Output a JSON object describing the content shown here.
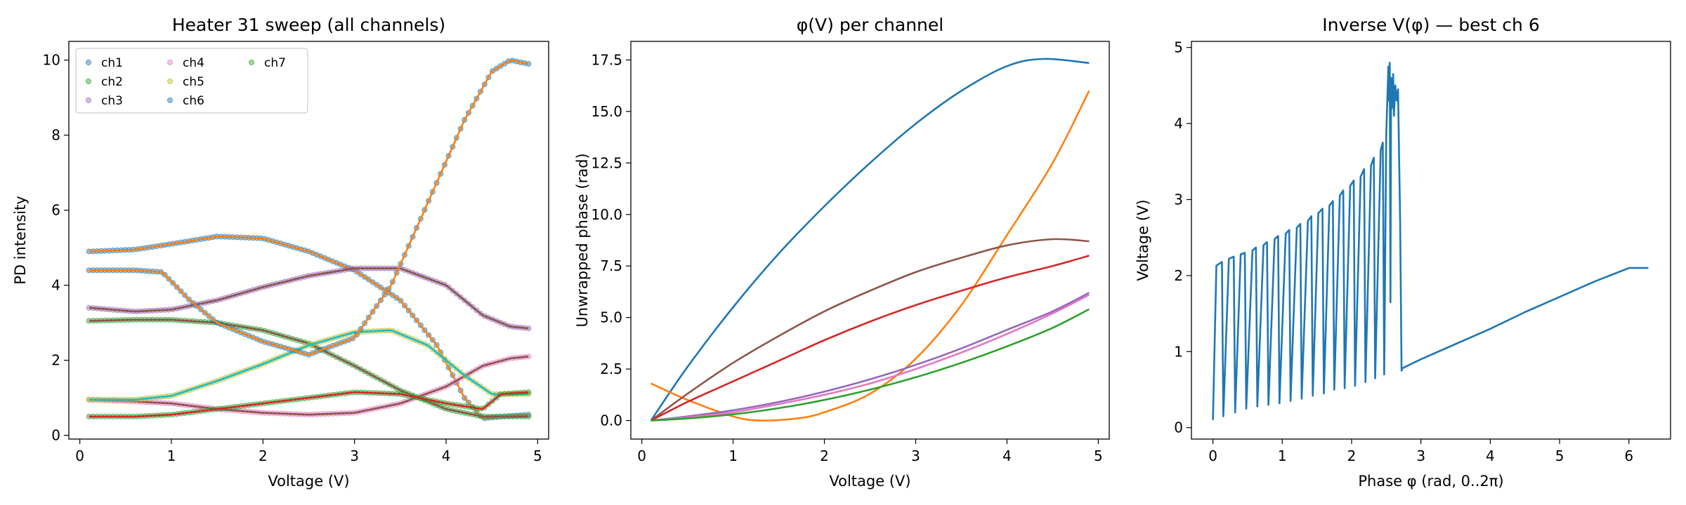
{
  "chart_data": [
    {
      "type": "scatter",
      "title": "Heater 31 sweep (all channels)",
      "xlabel": "Voltage (V)",
      "ylabel": "PD intensity",
      "xlim": [
        -0.12,
        5.12
      ],
      "ylim": [
        -0.1,
        10.5
      ],
      "xticks": [
        0,
        1,
        2,
        3,
        4,
        5
      ],
      "yticks": [
        0,
        2,
        4,
        6,
        8,
        10
      ],
      "legend_position": "top-left",
      "legend_columns": 3,
      "series": [
        {
          "name": "ch1",
          "color": "#1f77b4",
          "fit_color": "#ff7f0e",
          "points": [
            [
              0.1,
              4.9
            ],
            [
              0.6,
              4.95
            ],
            [
              1.0,
              5.1
            ],
            [
              1.5,
              5.3
            ],
            [
              2.0,
              5.25
            ],
            [
              2.5,
              4.9
            ],
            [
              3.0,
              4.4
            ],
            [
              3.5,
              3.6
            ],
            [
              3.9,
              2.4
            ],
            [
              4.2,
              1.0
            ],
            [
              4.4,
              0.45
            ],
            [
              4.6,
              0.5
            ],
            [
              4.9,
              0.55
            ]
          ]
        },
        {
          "name": "ch2",
          "color": "#2ca02c",
          "fit_color": "#8c564b",
          "points": [
            [
              0.1,
              3.05
            ],
            [
              0.6,
              3.08
            ],
            [
              1.0,
              3.08
            ],
            [
              1.5,
              3.0
            ],
            [
              2.0,
              2.8
            ],
            [
              2.5,
              2.45
            ],
            [
              3.0,
              1.85
            ],
            [
              3.5,
              1.2
            ],
            [
              4.0,
              0.7
            ],
            [
              4.4,
              0.5
            ],
            [
              4.9,
              0.5
            ]
          ]
        },
        {
          "name": "ch3",
          "color": "#9467bd",
          "fit_color": "#8c564b",
          "points": [
            [
              0.1,
              3.4
            ],
            [
              0.6,
              3.3
            ],
            [
              1.0,
              3.35
            ],
            [
              1.5,
              3.6
            ],
            [
              2.0,
              3.95
            ],
            [
              2.5,
              4.25
            ],
            [
              3.0,
              4.45
            ],
            [
              3.5,
              4.45
            ],
            [
              4.0,
              4.0
            ],
            [
              4.4,
              3.2
            ],
            [
              4.7,
              2.9
            ],
            [
              4.9,
              2.85
            ]
          ]
        },
        {
          "name": "ch4",
          "color": "#e377c2",
          "fit_color": "#8c564b",
          "points": [
            [
              0.1,
              0.95
            ],
            [
              0.6,
              0.9
            ],
            [
              1.0,
              0.85
            ],
            [
              1.5,
              0.7
            ],
            [
              2.0,
              0.6
            ],
            [
              2.5,
              0.55
            ],
            [
              3.0,
              0.6
            ],
            [
              3.5,
              0.85
            ],
            [
              4.0,
              1.3
            ],
            [
              4.4,
              1.85
            ],
            [
              4.7,
              2.05
            ],
            [
              4.9,
              2.1
            ]
          ]
        },
        {
          "name": "ch5",
          "color": "#bcbd22",
          "fit_color": "#17becf",
          "points": [
            [
              0.1,
              0.95
            ],
            [
              0.6,
              0.95
            ],
            [
              1.0,
              1.05
            ],
            [
              1.5,
              1.45
            ],
            [
              2.0,
              1.9
            ],
            [
              2.5,
              2.4
            ],
            [
              3.0,
              2.75
            ],
            [
              3.4,
              2.8
            ],
            [
              3.8,
              2.4
            ],
            [
              4.2,
              1.6
            ],
            [
              4.5,
              1.1
            ],
            [
              4.9,
              1.1
            ]
          ]
        },
        {
          "name": "ch6",
          "color": "#1f77b4",
          "fit_color": "#ff7f0e",
          "points": [
            [
              0.1,
              4.4
            ],
            [
              0.6,
              4.4
            ],
            [
              0.9,
              4.35
            ],
            [
              1.2,
              3.6
            ],
            [
              1.5,
              3.0
            ],
            [
              2.0,
              2.5
            ],
            [
              2.5,
              2.15
            ],
            [
              3.0,
              2.6
            ],
            [
              3.4,
              4.0
            ],
            [
              3.8,
              6.2
            ],
            [
              4.2,
              8.4
            ],
            [
              4.5,
              9.7
            ],
            [
              4.7,
              10.0
            ],
            [
              4.9,
              9.9
            ]
          ]
        },
        {
          "name": "ch7",
          "color": "#2ca02c",
          "fit_color": "#d62728",
          "points": [
            [
              0.1,
              0.5
            ],
            [
              0.6,
              0.5
            ],
            [
              1.0,
              0.55
            ],
            [
              1.5,
              0.7
            ],
            [
              2.0,
              0.85
            ],
            [
              2.5,
              1.0
            ],
            [
              3.0,
              1.15
            ],
            [
              3.5,
              1.1
            ],
            [
              4.0,
              0.85
            ],
            [
              4.4,
              0.7
            ],
            [
              4.6,
              1.1
            ],
            [
              4.9,
              1.15
            ]
          ]
        }
      ]
    },
    {
      "type": "line",
      "title": "φ(V) per channel",
      "xlabel": "Voltage (V)",
      "ylabel": "Unwrapped phase (rad)",
      "xlim": [
        -0.12,
        5.12
      ],
      "ylim": [
        -0.9,
        18.4
      ],
      "xticks": [
        0,
        1,
        2,
        3,
        4,
        5
      ],
      "yticks": [
        0.0,
        2.5,
        5.0,
        7.5,
        10.0,
        12.5,
        15.0,
        17.5
      ],
      "series": [
        {
          "color": "#1f77b4",
          "points": [
            [
              0.1,
              0
            ],
            [
              0.5,
              2.6
            ],
            [
              1.0,
              5.5
            ],
            [
              1.5,
              8.1
            ],
            [
              2.0,
              10.4
            ],
            [
              2.5,
              12.5
            ],
            [
              3.0,
              14.4
            ],
            [
              3.5,
              16.0
            ],
            [
              4.0,
              17.2
            ],
            [
              4.4,
              17.55
            ],
            [
              4.9,
              17.35
            ]
          ]
        },
        {
          "color": "#ff7f0e",
          "points": [
            [
              0.1,
              1.8
            ],
            [
              0.5,
              1.0
            ],
            [
              1.0,
              0.2
            ],
            [
              1.3,
              0.0
            ],
            [
              1.7,
              0.1
            ],
            [
              2.0,
              0.4
            ],
            [
              2.5,
              1.3
            ],
            [
              3.0,
              3.0
            ],
            [
              3.5,
              5.6
            ],
            [
              4.0,
              9.0
            ],
            [
              4.5,
              12.5
            ],
            [
              4.9,
              16.0
            ]
          ]
        },
        {
          "color": "#8c564b",
          "points": [
            [
              0.1,
              0
            ],
            [
              0.5,
              1.3
            ],
            [
              1.0,
              2.8
            ],
            [
              1.5,
              4.1
            ],
            [
              2.0,
              5.3
            ],
            [
              2.5,
              6.3
            ],
            [
              3.0,
              7.2
            ],
            [
              3.5,
              7.9
            ],
            [
              4.0,
              8.5
            ],
            [
              4.5,
              8.8
            ],
            [
              4.9,
              8.7
            ]
          ]
        },
        {
          "color": "#d62728",
          "points": [
            [
              0.1,
              0
            ],
            [
              0.5,
              0.9
            ],
            [
              1.0,
              1.9
            ],
            [
              1.5,
              2.9
            ],
            [
              2.0,
              3.9
            ],
            [
              2.5,
              4.8
            ],
            [
              3.0,
              5.6
            ],
            [
              3.5,
              6.3
            ],
            [
              4.0,
              6.95
            ],
            [
              4.5,
              7.5
            ],
            [
              4.9,
              8.0
            ]
          ]
        },
        {
          "color": "#9467bd",
          "points": [
            [
              0.1,
              0
            ],
            [
              0.5,
              0.2
            ],
            [
              1.0,
              0.5
            ],
            [
              1.5,
              0.9
            ],
            [
              2.0,
              1.4
            ],
            [
              2.5,
              2.0
            ],
            [
              3.0,
              2.7
            ],
            [
              3.5,
              3.5
            ],
            [
              4.0,
              4.4
            ],
            [
              4.5,
              5.3
            ],
            [
              4.9,
              6.2
            ]
          ]
        },
        {
          "color": "#e377c2",
          "points": [
            [
              0.1,
              0
            ],
            [
              0.5,
              0.15
            ],
            [
              1.0,
              0.4
            ],
            [
              1.5,
              0.8
            ],
            [
              2.0,
              1.25
            ],
            [
              2.5,
              1.8
            ],
            [
              3.0,
              2.5
            ],
            [
              3.5,
              3.3
            ],
            [
              4.0,
              4.2
            ],
            [
              4.5,
              5.2
            ],
            [
              4.9,
              6.1
            ]
          ]
        },
        {
          "color": "#2ca02c",
          "points": [
            [
              0.1,
              0
            ],
            [
              0.5,
              0.1
            ],
            [
              1.0,
              0.3
            ],
            [
              1.5,
              0.6
            ],
            [
              2.0,
              1.0
            ],
            [
              2.5,
              1.5
            ],
            [
              3.0,
              2.1
            ],
            [
              3.5,
              2.8
            ],
            [
              4.0,
              3.6
            ],
            [
              4.5,
              4.5
            ],
            [
              4.9,
              5.4
            ]
          ]
        }
      ]
    },
    {
      "type": "line",
      "title": "Inverse V(φ) — best ch 6",
      "xlabel": "Phase φ (rad, 0..2π)",
      "ylabel": "Voltage (V)",
      "xlim": [
        -0.31,
        6.6
      ],
      "ylim": [
        -0.15,
        5.08
      ],
      "xticks": [
        0,
        1,
        2,
        3,
        4,
        5,
        6
      ],
      "yticks": [
        0,
        1,
        2,
        3,
        4,
        5
      ],
      "series": [
        {
          "color": "#1f77b4",
          "points": [
            [
              0,
              0.1
            ],
            [
              0.05,
              2.13
            ],
            [
              0.13,
              2.18
            ],
            [
              0.15,
              0.15
            ],
            [
              0.23,
              2.22
            ],
            [
              0.3,
              2.25
            ],
            [
              0.32,
              0.2
            ],
            [
              0.4,
              2.28
            ],
            [
              0.46,
              2.3
            ],
            [
              0.48,
              0.25
            ],
            [
              0.57,
              2.33
            ],
            [
              0.62,
              2.37
            ],
            [
              0.64,
              0.28
            ],
            [
              0.73,
              2.4
            ],
            [
              0.78,
              2.44
            ],
            [
              0.8,
              0.3
            ],
            [
              0.89,
              2.48
            ],
            [
              0.94,
              2.52
            ],
            [
              0.96,
              0.32
            ],
            [
              1.05,
              2.55
            ],
            [
              1.1,
              2.6
            ],
            [
              1.12,
              0.35
            ],
            [
              1.21,
              2.63
            ],
            [
              1.26,
              2.68
            ],
            [
              1.28,
              0.38
            ],
            [
              1.37,
              2.72
            ],
            [
              1.42,
              2.78
            ],
            [
              1.44,
              0.42
            ],
            [
              1.52,
              2.82
            ],
            [
              1.58,
              2.88
            ],
            [
              1.6,
              0.45
            ],
            [
              1.68,
              2.92
            ],
            [
              1.73,
              2.98
            ],
            [
              1.75,
              0.5
            ],
            [
              1.83,
              3.05
            ],
            [
              1.88,
              3.12
            ],
            [
              1.9,
              0.52
            ],
            [
              1.98,
              3.18
            ],
            [
              2.03,
              3.25
            ],
            [
              2.05,
              0.55
            ],
            [
              2.13,
              3.3
            ],
            [
              2.18,
              3.4
            ],
            [
              2.2,
              0.6
            ],
            [
              2.28,
              3.45
            ],
            [
              2.32,
              3.55
            ],
            [
              2.34,
              0.65
            ],
            [
              2.42,
              3.65
            ],
            [
              2.45,
              3.75
            ],
            [
              2.47,
              0.7
            ],
            [
              2.5,
              3.85
            ],
            [
              2.53,
              4.75
            ],
            [
              2.54,
              4.3
            ],
            [
              2.55,
              4.8
            ],
            [
              2.56,
              1.65
            ],
            [
              2.57,
              4.6
            ],
            [
              2.58,
              4.2
            ],
            [
              2.6,
              4.65
            ],
            [
              2.61,
              4.1
            ],
            [
              2.63,
              4.5
            ],
            [
              2.65,
              4.3
            ],
            [
              2.67,
              4.45
            ],
            [
              2.7,
              2.7
            ],
            [
              2.72,
              0.75
            ],
            [
              2.73,
              0.78
            ],
            [
              3.0,
              0.9
            ],
            [
              3.5,
              1.1
            ],
            [
              4.0,
              1.3
            ],
            [
              4.5,
              1.52
            ],
            [
              5.0,
              1.72
            ],
            [
              5.5,
              1.92
            ],
            [
              6.0,
              2.1
            ],
            [
              6.28,
              2.1
            ]
          ]
        }
      ]
    }
  ]
}
